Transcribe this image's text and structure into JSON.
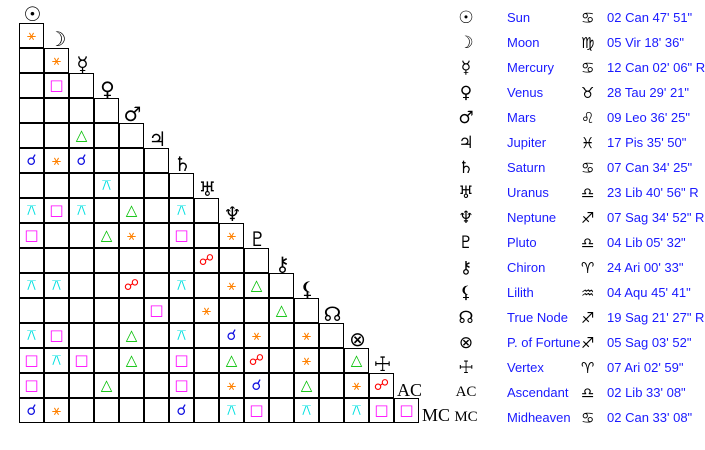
{
  "aspect_styles": {
    "conj": {
      "glyph": "☌",
      "color": "#1010e0"
    },
    "sext": {
      "glyph": "⚹",
      "color": "#ff8000"
    },
    "sq": {
      "glyph": "□",
      "color": "#ff00ff"
    },
    "tri": {
      "glyph": "△",
      "color": "#00c000"
    },
    "qx": {
      "glyph": "⚻",
      "color": "#00e0e0"
    },
    "opp": {
      "glyph": "☍",
      "color": "#ff0000"
    }
  },
  "bodies": [
    {
      "glyph": "☉",
      "name": "Sun",
      "sign": "♋",
      "position": "02 Can 47' 51\""
    },
    {
      "glyph": "☽",
      "name": "Moon",
      "sign": "♍",
      "position": "05 Vir 18' 36\""
    },
    {
      "glyph": "☿",
      "name": "Mercury",
      "sign": "♋",
      "position": "12 Can 02' 06\" R"
    },
    {
      "glyph": "♀",
      "name": "Venus",
      "sign": "♉",
      "position": "28 Tau 29' 21\""
    },
    {
      "glyph": "♂",
      "name": "Mars",
      "sign": "♌",
      "position": "09 Leo 36' 25\""
    },
    {
      "glyph": "♃",
      "name": "Jupiter",
      "sign": "♓",
      "position": "17 Pis 35' 50\""
    },
    {
      "glyph": "♄",
      "name": "Saturn",
      "sign": "♋",
      "position": "07 Can 34' 25\""
    },
    {
      "glyph": "♅",
      "name": "Uranus",
      "sign": "♎",
      "position": "23 Lib 40' 56\" R"
    },
    {
      "glyph": "♆",
      "name": "Neptune",
      "sign": "♐",
      "position": "07 Sag 34' 52\" R"
    },
    {
      "glyph": "♇",
      "name": "Pluto",
      "sign": "♎",
      "position": "04 Lib 05' 32\""
    },
    {
      "glyph": "⚷",
      "name": "Chiron",
      "sign": "♈",
      "position": "24 Ari 00' 33\""
    },
    {
      "glyph": "⚸",
      "name": "Lilith",
      "sign": "♒",
      "position": "04 Aqu 45' 41\""
    },
    {
      "glyph": "☊",
      "name": "True Node",
      "sign": "♐",
      "position": "19 Sag 21' 27\" R"
    },
    {
      "glyph": "⊗",
      "name": "P. of Fortune",
      "sign": "♐",
      "position": "05 Sag 03' 52\""
    },
    {
      "glyph": "☩",
      "name": "Vertex",
      "sign": "♈",
      "position": "07 Ari 02' 59\""
    },
    {
      "glyph": "AC",
      "name": "Ascendant",
      "sign": "♎",
      "position": "02 Lib 33' 08\""
    },
    {
      "glyph": "MC",
      "name": "Midheaven",
      "sign": "♋",
      "position": "02 Can 33' 08\""
    }
  ],
  "aspect_grid": [
    [
      "sext"
    ],
    [
      "",
      "sext"
    ],
    [
      "",
      "sq",
      ""
    ],
    [
      "",
      "",
      "",
      ""
    ],
    [
      "",
      "",
      "tri",
      "",
      ""
    ],
    [
      "conj",
      "sext",
      "conj",
      "",
      "",
      ""
    ],
    [
      "",
      "",
      "",
      "qx",
      "",
      "",
      ""
    ],
    [
      "qx",
      "sq",
      "qx",
      "",
      "tri",
      "",
      "qx",
      ""
    ],
    [
      "sq",
      "",
      "",
      "tri",
      "sext",
      "",
      "sq",
      "",
      "sext"
    ],
    [
      "",
      "",
      "",
      "",
      "",
      "",
      "",
      "opp",
      "",
      ""
    ],
    [
      "qx",
      "qx",
      "",
      "",
      "opp",
      "",
      "qx",
      "",
      "sext",
      "tri",
      ""
    ],
    [
      "",
      "",
      "",
      "",
      "",
      "sq",
      "",
      "sext",
      "",
      "",
      "tri",
      ""
    ],
    [
      "qx",
      "sq",
      "",
      "",
      "tri",
      "",
      "qx",
      "",
      "conj",
      "sext",
      "",
      "sext",
      ""
    ],
    [
      "sq",
      "qx",
      "sq",
      "",
      "tri",
      "",
      "sq",
      "",
      "tri",
      "opp",
      "",
      "sext",
      "",
      "tri"
    ],
    [
      "sq",
      "",
      "",
      "tri",
      "",
      "",
      "sq",
      "",
      "sext",
      "conj",
      "",
      "tri",
      "",
      "sext",
      "opp"
    ],
    [
      "conj",
      "sext",
      "",
      "",
      "",
      "",
      "conj",
      "",
      "qx",
      "sq",
      "",
      "qx",
      "",
      "qx",
      "sq",
      "sq"
    ]
  ]
}
